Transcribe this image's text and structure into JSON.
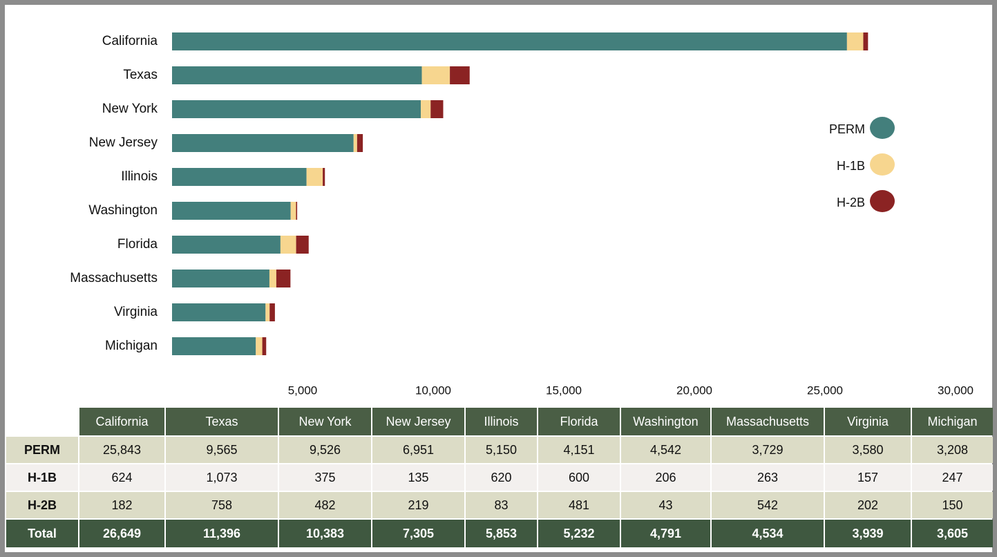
{
  "chart_data": {
    "type": "bar",
    "orientation": "horizontal",
    "stacked": true,
    "categories": [
      "California",
      "Texas",
      "New York",
      "New Jersey",
      "Illinois",
      "Washington",
      "Florida",
      "Massachusetts",
      "Virginia",
      "Michigan"
    ],
    "series": [
      {
        "name": "PERM",
        "color": "#437f7c",
        "values": [
          25843,
          9565,
          9526,
          6951,
          5150,
          4542,
          4151,
          3729,
          3580,
          3208
        ]
      },
      {
        "name": "H-1B",
        "color": "#f7d68f",
        "values": [
          624,
          1073,
          375,
          135,
          620,
          206,
          600,
          263,
          157,
          247
        ]
      },
      {
        "name": "H-2B",
        "color": "#8b2323",
        "values": [
          182,
          758,
          482,
          219,
          83,
          43,
          481,
          542,
          202,
          150
        ]
      }
    ],
    "xlim": [
      0,
      30000
    ],
    "xticks": [
      {
        "value": 5000,
        "label": "5,000"
      },
      {
        "value": 10000,
        "label": "10,000"
      },
      {
        "value": 15000,
        "label": "15,000"
      },
      {
        "value": 20000,
        "label": "20,000"
      },
      {
        "value": 25000,
        "label": "25,000"
      },
      {
        "value": 30000,
        "label": "30,000"
      }
    ],
    "grid": false,
    "legend": "right"
  },
  "table": {
    "columns": [
      "California",
      "Texas",
      "New York",
      "New Jersey",
      "Illinois",
      "Florida",
      "Washington",
      "Massachusetts",
      "Virginia",
      "Michigan"
    ],
    "rows": [
      {
        "label": "PERM",
        "cells": [
          "25,843",
          "9,565",
          "9,526",
          "6,951",
          "5,150",
          "4,151",
          "4,542",
          "3,729",
          "3,580",
          "3,208"
        ]
      },
      {
        "label": "H-1B",
        "cells": [
          "624",
          "1,073",
          "375",
          "135",
          "620",
          "600",
          "206",
          "263",
          "157",
          "247"
        ]
      },
      {
        "label": "H-2B",
        "cells": [
          "182",
          "758",
          "482",
          "219",
          "83",
          "481",
          "43",
          "542",
          "202",
          "150"
        ]
      },
      {
        "label": "Total",
        "cells": [
          "26,649",
          "11,396",
          "10,383",
          "7,305",
          "5,853",
          "5,232",
          "4,791",
          "4,534",
          "3,939",
          "3,605"
        ]
      }
    ]
  }
}
